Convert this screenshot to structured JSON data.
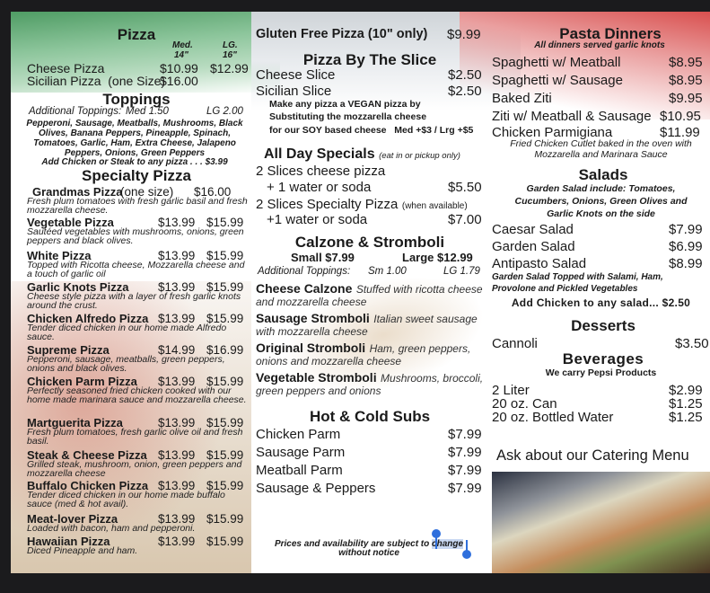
{
  "pizza": {
    "title": "Pizza",
    "med_label": "Med.",
    "med_size": "14\"",
    "lg_label": "LG.",
    "lg_size": "16\"",
    "cheese": {
      "name": "Cheese Pizza",
      "med": "$10.99",
      "lg": "$12.99"
    },
    "sicilian": {
      "name": "Sicilian Pizza  (one Size)",
      "price": "$16.00"
    }
  },
  "toppings": {
    "title": "Toppings",
    "additional_label": "Additional Toppings:",
    "med": "Med 1.50",
    "lg": "LG 2.00",
    "lines": [
      "Pepperoni, Sausage, Meatballs, Mushrooms, Black",
      "Olives, Banana Peppers, Pineapple, Spinach,",
      "Tomatoes, Garlic, Ham, Extra Cheese, Jalapeno",
      "Peppers, Onions, Green Peppers"
    ],
    "add_meat": "Add Chicken or Steak to any pizza . . . $3.99"
  },
  "specialty": {
    "title": "Specialty Pizza",
    "items": [
      {
        "name": "Grandmas Pizza",
        "note": "(one size)",
        "med": "$16.00",
        "lg": "",
        "desc": "Fresh plum tomatoes with fresh garlic basil and fresh mozzarella cheese."
      },
      {
        "name": "Vegetable Pizza",
        "med": "$13.99",
        "lg": "$15.99",
        "desc": "Sautéed vegetables with mushrooms, onions, green peppers and black olives."
      },
      {
        "name": "White Pizza",
        "med": "$13.99",
        "lg": "$15.99",
        "desc": "Topped with Ricotta cheese, Mozzarella cheese and a touch of garlic oil"
      },
      {
        "name": "Garlic Knots Pizza",
        "med": "$13.99",
        "lg": "$15.99",
        "desc": "Cheese style pizza with a layer of fresh garlic knots around the crust."
      },
      {
        "name": "Chicken Alfredo Pizza",
        "med": "$13.99",
        "lg": "$15.99",
        "desc": "Tender diced chicken in our home made Alfredo sauce."
      },
      {
        "name": "Supreme Pizza",
        "med": "$14.99",
        "lg": "$16.99",
        "desc": "Pepperoni, sausage, meatballs, green peppers, onions and black olives."
      },
      {
        "name": "Chicken Parm Pizza",
        "med": "$13.99",
        "lg": "$15.99",
        "desc": "Perfectly seasoned fried chicken cooked with our home made marinara sauce and mozzarella cheese."
      },
      {
        "name": "Martguerita Pizza",
        "med": "$13.99",
        "lg": "$15.99",
        "desc": "Fresh plum tomatoes, fresh garlic olive oil and fresh basil."
      },
      {
        "name": "Steak & Cheese Pizza",
        "med": "$13.99",
        "lg": "$15.99",
        "desc": "Grilled steak, mushroom, onion, green peppers and mozzarella cheese"
      },
      {
        "name": "Buffalo Chicken Pizza",
        "med": "$13.99",
        "lg": "$15.99",
        "desc": "Tender diced chicken in our home made buffalo sauce (med & hot avail)."
      },
      {
        "name": "Meat-lover Pizza",
        "med": "$13.99",
        "lg": "$15.99",
        "desc": "Loaded with bacon, ham and pepperoni."
      },
      {
        "name": "Hawaiian Pizza",
        "med": "$13.99",
        "lg": "$15.99",
        "desc": "Diced Pineapple and ham."
      }
    ]
  },
  "gluten_free": {
    "name": "Gluten Free Pizza (10\" only)",
    "price": "$9.99"
  },
  "slice": {
    "title": "Pizza By The Slice",
    "items": [
      {
        "name": "Cheese Slice",
        "price": "$2.50"
      },
      {
        "name": "Sicilian Slice",
        "price": "$2.50"
      }
    ],
    "vegan_lines": [
      "Make any pizza a VEGAN pizza by",
      "Substituting the mozzarella cheese",
      "for our SOY based cheese   Med +$3 / Lrg +$5"
    ]
  },
  "specials": {
    "title": "All Day Specials",
    "note": "(eat in or pickup only)",
    "items": [
      {
        "line1": "2 Slices cheese pizza",
        "line1_note": "",
        "line2": "+ 1 water or soda",
        "price": "$5.50"
      },
      {
        "line1": "2 Slices Specialty Pizza",
        "line1_note": "(when available)",
        "line2": "+1 water or soda",
        "price": "$7.00"
      }
    ]
  },
  "calzone": {
    "title": "Calzone & Stromboli",
    "small": "Small $7.99",
    "large": "Large $12.99",
    "additional_label": "Additional Toppings:",
    "sm": "Sm 1.00",
    "lg": "LG 1.79",
    "items": [
      {
        "name": "Cheese Calzone",
        "desc": "Stuffed with ricotta cheese and mozzarella cheese"
      },
      {
        "name": "Sausage Stromboli",
        "desc": "Italian sweet sausage with mozzarella cheese"
      },
      {
        "name": "Original Stromboli",
        "desc": "Ham, green peppers, onions and mozzarella cheese"
      },
      {
        "name": "Vegetable Stromboli",
        "desc": "Mushrooms, broccoli, green peppers and onions"
      }
    ]
  },
  "subs": {
    "title": "Hot & Cold Subs",
    "items": [
      {
        "name": "Chicken Parm",
        "price": "$7.99"
      },
      {
        "name": "Sausage Parm",
        "price": "$7.99"
      },
      {
        "name": "Meatball Parm",
        "price": "$7.99"
      },
      {
        "name": "Sausage & Peppers",
        "price": "$7.99"
      }
    ]
  },
  "footnote": {
    "before": "Prices and availability are subject to ",
    "selected": "change",
    "line2": "without notice"
  },
  "pasta": {
    "title": "Pasta Dinners",
    "subtitle": "All dinners served garlic knots",
    "items": [
      {
        "name": "Spaghetti w/ Meatball",
        "price": "$8.95"
      },
      {
        "name": "Spaghetti w/ Sausage",
        "price": "$8.95"
      },
      {
        "name": "Baked Ziti",
        "price": "$9.95"
      },
      {
        "name": "Ziti w/ Meatball & Sausage",
        "price": "$10.95"
      },
      {
        "name": "Chicken Parmigiana",
        "price": "$11.99"
      }
    ],
    "parm_desc": [
      "Fried Chicken Cutlet baked in the oven with",
      "Mozzarella and Marinara Sauce"
    ]
  },
  "salads": {
    "title": "Salads",
    "intro": [
      "Garden Salad include: Tomatoes,",
      "Cucumbers, Onions, Green Olives and",
      "Garlic Knots on the side"
    ],
    "items": [
      {
        "name": "Caesar Salad",
        "price": "$7.99"
      },
      {
        "name": "Garden Salad",
        "price": "$6.99"
      },
      {
        "name": "Antipasto Salad",
        "price": "$8.99"
      }
    ],
    "antipasto_desc": [
      "Garden Salad Topped with Salami, Ham,",
      "Provolone and Pickled Vegetables"
    ],
    "add_chicken": "Add Chicken to any salad... $2.50"
  },
  "desserts": {
    "title": "Desserts",
    "items": [
      {
        "name": "Cannoli",
        "price": "$3.50"
      }
    ]
  },
  "beverages": {
    "title": "Beverages",
    "subtitle": "We carry Pepsi Products",
    "items": [
      {
        "name": "2 Liter",
        "price": "$2.99"
      },
      {
        "name": "20 oz. Can",
        "price": "$1.25"
      },
      {
        "name": "20 oz. Bottled Water",
        "price": "$1.25"
      }
    ]
  },
  "catering": {
    "text": "Ask about our Catering Menu"
  },
  "colors": {
    "green": "#5fa872",
    "red": "#d9504f",
    "frame": "#1b1b1d",
    "selection": "#2f6fdc"
  }
}
